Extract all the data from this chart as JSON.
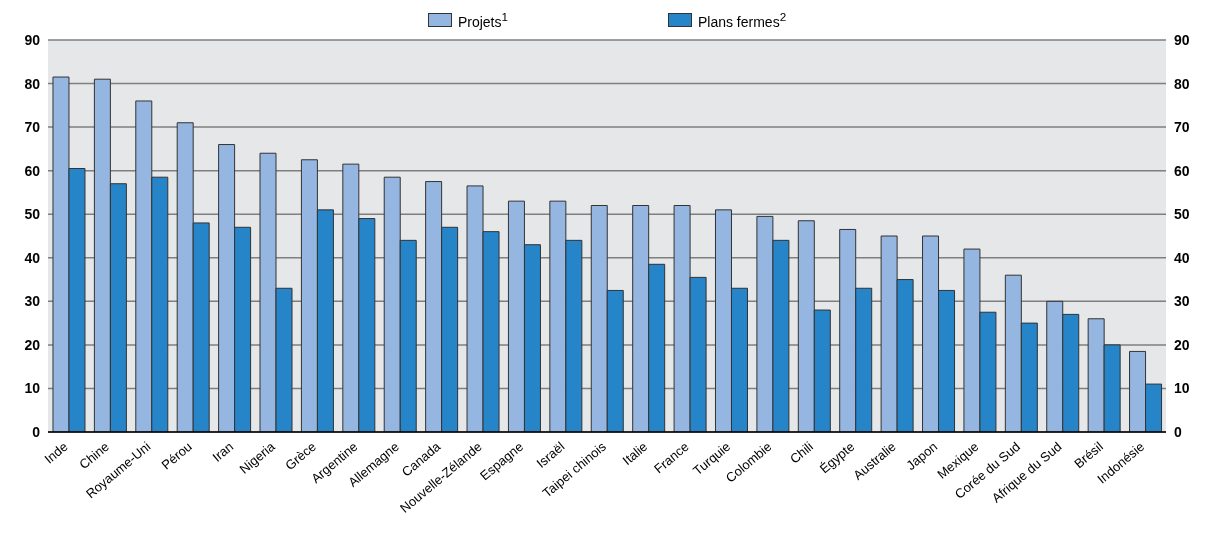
{
  "chart_data": {
    "type": "bar",
    "categories": [
      "Inde",
      "Chine",
      "Royaume-Uni",
      "Pérou",
      "Iran",
      "Nigeria",
      "Grèce",
      "Argentine",
      "Allemagne",
      "Canada",
      "Nouvelle-Zélande",
      "Espagne",
      "Israël",
      "Taipei chinois",
      "Italie",
      "France",
      "Turquie",
      "Colombie",
      "Chili",
      "Égypte",
      "Australie",
      "Japon",
      "Mexique",
      "Corée du Sud",
      "Afrique du Sud",
      "Brésil",
      "Indonésie"
    ],
    "series": [
      {
        "name": "Projets$^{1}$",
        "color": "#95b6e0",
        "values": [
          81.5,
          81,
          76,
          71,
          66,
          64,
          62.5,
          61.5,
          58.5,
          57.5,
          56.5,
          53,
          53,
          52,
          52,
          52,
          51,
          49.5,
          48.5,
          46.5,
          45,
          45,
          42,
          36,
          30,
          26,
          18.5
        ]
      },
      {
        "name": "Plans fermes$^{2}$",
        "color": "#2585c8",
        "values": [
          60.5,
          57,
          58.5,
          48,
          47,
          33,
          51,
          49,
          44,
          47,
          46,
          43,
          44,
          32.5,
          38.5,
          35.5,
          33,
          44,
          28,
          33,
          35,
          32.5,
          27.5,
          25,
          27,
          20,
          11
        ]
      }
    ],
    "ylim": [
      0,
      90
    ],
    "yticks": [
      0,
      10,
      20,
      30,
      40,
      50,
      60,
      70,
      80,
      90
    ],
    "y2lim": [
      0,
      90
    ],
    "y2ticks": [
      0,
      10,
      20,
      30,
      40,
      50,
      60,
      70,
      80,
      90
    ],
    "grid": "y",
    "legend": "top"
  }
}
